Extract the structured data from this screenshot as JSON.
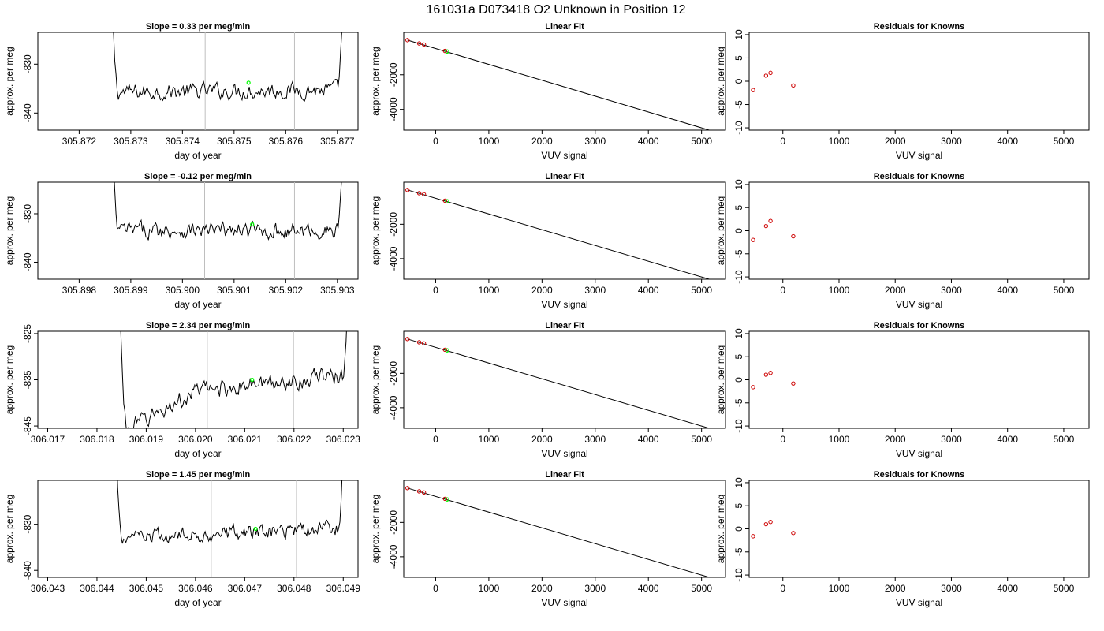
{
  "figure": {
    "title": "161031a      D073418   O2 Unknown in Position  12"
  },
  "colors": {
    "line": "#000000",
    "vline": "#bebebe",
    "known_point": "#cd0000",
    "unknown_point": "#00ff00"
  },
  "chart_data": [
    {
      "id": "ts1",
      "type": "line",
      "title": "Slope =  0.33  per meg/min",
      "xlabel": "day of year",
      "ylabel": "approx. per meg",
      "xlim": [
        305.8712,
        305.8774
      ],
      "ylim": [
        -843.5,
        -823.5
      ],
      "xticks": [
        "305.872",
        "305.873",
        "305.874",
        "305.875",
        "305.876",
        "305.877"
      ],
      "yticks": [
        "-830",
        "-840"
      ],
      "vlines": [
        305.87444,
        305.87617
      ],
      "base": -835.5,
      "amp": 1.6,
      "trend": 0.5,
      "x_start": 305.87255,
      "x_end": 305.8772,
      "marker": {
        "x": 305.87528,
        "y": -833.8
      }
    },
    {
      "id": "lf1",
      "type": "scatter",
      "title": "Linear Fit",
      "xlabel": "VUV signal",
      "ylabel": "approx. per meg",
      "xlim": [
        -600,
        5450
      ],
      "ylim": [
        -5200,
        450
      ],
      "xticks": [
        "0",
        "1000",
        "2000",
        "3000",
        "4000",
        "5000"
      ],
      "yticks": [
        "-2000",
        "-4000"
      ],
      "knowns": [
        {
          "x": -530,
          "y": 0
        },
        {
          "x": -310,
          "y": -190
        },
        {
          "x": -220,
          "y": -255
        },
        {
          "x": 175,
          "y": -625
        }
      ],
      "unknown": {
        "x": 215,
        "y": -660
      },
      "fit_line": {
        "x": [
          -530,
          5330
        ],
        "y": [
          0,
          -5370
        ]
      }
    },
    {
      "id": "rs1",
      "type": "scatter",
      "title": "Residuals for Knowns",
      "xlabel": "VUV signal",
      "ylabel": "approx. per meg",
      "xlim": [
        -600,
        5450
      ],
      "ylim": [
        -10.5,
        10.5
      ],
      "xticks": [
        "0",
        "1000",
        "2000",
        "3000",
        "4000",
        "5000"
      ],
      "yticks": [
        "10",
        "5",
        "0",
        "-5",
        "-10"
      ],
      "knowns": [
        {
          "x": -530,
          "y": -1.9
        },
        {
          "x": -300,
          "y": 1.2
        },
        {
          "x": -220,
          "y": 1.8
        },
        {
          "x": 185,
          "y": -0.9
        }
      ]
    },
    {
      "id": "ts2",
      "type": "line",
      "title": "Slope =  -0.12  per meg/min",
      "xlabel": "day of year",
      "ylabel": "approx. per meg",
      "xlim": [
        305.8972,
        305.9034
      ],
      "ylim": [
        -843.5,
        -823.5
      ],
      "xticks": [
        "305.898",
        "305.899",
        "305.900",
        "305.901",
        "305.902",
        "305.903"
      ],
      "yticks": [
        "-830",
        "-840"
      ],
      "vlines": [
        305.90043,
        305.90217
      ],
      "base": -833.5,
      "amp": 1.6,
      "trend": -0.3,
      "x_start": 305.89855,
      "x_end": 305.9032,
      "marker": {
        "x": 305.90135,
        "y": -832.2
      }
    },
    {
      "id": "lf2",
      "type": "scatter",
      "title": "Linear Fit",
      "xlabel": "VUV signal",
      "ylabel": "approx. per meg",
      "xlim": [
        -600,
        5450
      ],
      "ylim": [
        -5200,
        450
      ],
      "xticks": [
        "0",
        "1000",
        "2000",
        "3000",
        "4000",
        "5000"
      ],
      "yticks": [
        "-2000",
        "-4000"
      ],
      "knowns": [
        {
          "x": -530,
          "y": 0
        },
        {
          "x": -310,
          "y": -190
        },
        {
          "x": -220,
          "y": -255
        },
        {
          "x": 175,
          "y": -625
        }
      ],
      "unknown": {
        "x": 215,
        "y": -660
      },
      "fit_line": {
        "x": [
          -530,
          5330
        ],
        "y": [
          0,
          -5370
        ]
      }
    },
    {
      "id": "rs2",
      "type": "scatter",
      "title": "Residuals for Knowns",
      "xlabel": "VUV signal",
      "ylabel": "approx. per meg",
      "xlim": [
        -600,
        5450
      ],
      "ylim": [
        -10.5,
        10.5
      ],
      "xticks": [
        "0",
        "1000",
        "2000",
        "3000",
        "4000",
        "5000"
      ],
      "yticks": [
        "10",
        "5",
        "0",
        "-5",
        "-10"
      ],
      "knowns": [
        {
          "x": -530,
          "y": -2.0
        },
        {
          "x": -300,
          "y": 1.0
        },
        {
          "x": -220,
          "y": 2.1
        },
        {
          "x": 185,
          "y": -1.2
        }
      ]
    },
    {
      "id": "ts3",
      "type": "line",
      "title": "Slope =  2.34  per meg/min",
      "xlabel": "day of year",
      "ylabel": "approx. per meg",
      "xlim": [
        306.0168,
        306.0233
      ],
      "ylim": [
        -845.5,
        -824.5
      ],
      "xticks": [
        "306.017",
        "306.018",
        "306.019",
        "306.020",
        "306.021",
        "306.022",
        "306.023"
      ],
      "yticks": [
        "-825",
        "-835",
        "-845"
      ],
      "vlines": [
        306.02024,
        306.02199
      ],
      "base": -836.5,
      "amp": 1.8,
      "trend": 5.5,
      "x_start": 306.0184,
      "x_end": 306.0232,
      "marker": {
        "x": 306.02115,
        "y": -835.0
      }
    },
    {
      "id": "lf3",
      "type": "scatter",
      "title": "Linear Fit",
      "xlabel": "VUV signal",
      "ylabel": "approx. per meg",
      "xlim": [
        -600,
        5450
      ],
      "ylim": [
        -5200,
        450
      ],
      "xticks": [
        "0",
        "1000",
        "2000",
        "3000",
        "4000",
        "5000"
      ],
      "yticks": [
        "-2000",
        "-4000"
      ],
      "knowns": [
        {
          "x": -530,
          "y": 0
        },
        {
          "x": -310,
          "y": -190
        },
        {
          "x": -220,
          "y": -255
        },
        {
          "x": 175,
          "y": -625
        }
      ],
      "unknown": {
        "x": 215,
        "y": -660
      },
      "fit_line": {
        "x": [
          -530,
          5330
        ],
        "y": [
          0,
          -5370
        ]
      }
    },
    {
      "id": "rs3",
      "type": "scatter",
      "title": "Residuals for Knowns",
      "xlabel": "VUV signal",
      "ylabel": "approx. per meg",
      "xlim": [
        -600,
        5450
      ],
      "ylim": [
        -10.5,
        10.5
      ],
      "xticks": [
        "0",
        "1000",
        "2000",
        "3000",
        "4000",
        "5000"
      ],
      "yticks": [
        "10",
        "5",
        "0",
        "-5",
        "-10"
      ],
      "knowns": [
        {
          "x": -530,
          "y": -1.6
        },
        {
          "x": -300,
          "y": 1.1
        },
        {
          "x": -220,
          "y": 1.5
        },
        {
          "x": 185,
          "y": -0.8
        }
      ]
    },
    {
      "id": "ts4",
      "type": "line",
      "title": "Slope =  1.45  per meg/min",
      "xlabel": "day of year",
      "ylabel": "approx. per meg",
      "xlim": [
        306.0428,
        306.0493
      ],
      "ylim": [
        -841.5,
        -820.5
      ],
      "xticks": [
        "306.043",
        "306.044",
        "306.045",
        "306.046",
        "306.047",
        "306.048",
        "306.049"
      ],
      "yticks": [
        "-830",
        "-840"
      ],
      "vlines": [
        306.04632,
        306.04805
      ],
      "base": -832.0,
      "amp": 1.6,
      "trend": 2.5,
      "x_start": 306.0443,
      "x_end": 306.0491,
      "marker": {
        "x": 306.04722,
        "y": -831.0
      }
    },
    {
      "id": "lf4",
      "type": "scatter",
      "title": "Linear Fit",
      "xlabel": "VUV signal",
      "ylabel": "approx. per meg",
      "xlim": [
        -600,
        5450
      ],
      "ylim": [
        -5200,
        450
      ],
      "xticks": [
        "0",
        "1000",
        "2000",
        "3000",
        "4000",
        "5000"
      ],
      "yticks": [
        "-2000",
        "-4000"
      ],
      "knowns": [
        {
          "x": -530,
          "y": 0
        },
        {
          "x": -310,
          "y": -190
        },
        {
          "x": -220,
          "y": -255
        },
        {
          "x": 175,
          "y": -625
        }
      ],
      "unknown": {
        "x": 215,
        "y": -660
      },
      "fit_line": {
        "x": [
          -530,
          5330
        ],
        "y": [
          0,
          -5370
        ]
      }
    },
    {
      "id": "rs4",
      "type": "scatter",
      "title": "Residuals for Knowns",
      "xlabel": "VUV signal",
      "ylabel": "approx. per meg",
      "xlim": [
        -600,
        5450
      ],
      "ylim": [
        -10.5,
        10.5
      ],
      "xticks": [
        "0",
        "1000",
        "2000",
        "3000",
        "4000",
        "5000"
      ],
      "yticks": [
        "10",
        "5",
        "0",
        "-5",
        "-10"
      ],
      "knowns": [
        {
          "x": -530,
          "y": -1.6
        },
        {
          "x": -300,
          "y": 1.0
        },
        {
          "x": -220,
          "y": 1.5
        },
        {
          "x": 185,
          "y": -0.9
        }
      ]
    }
  ]
}
